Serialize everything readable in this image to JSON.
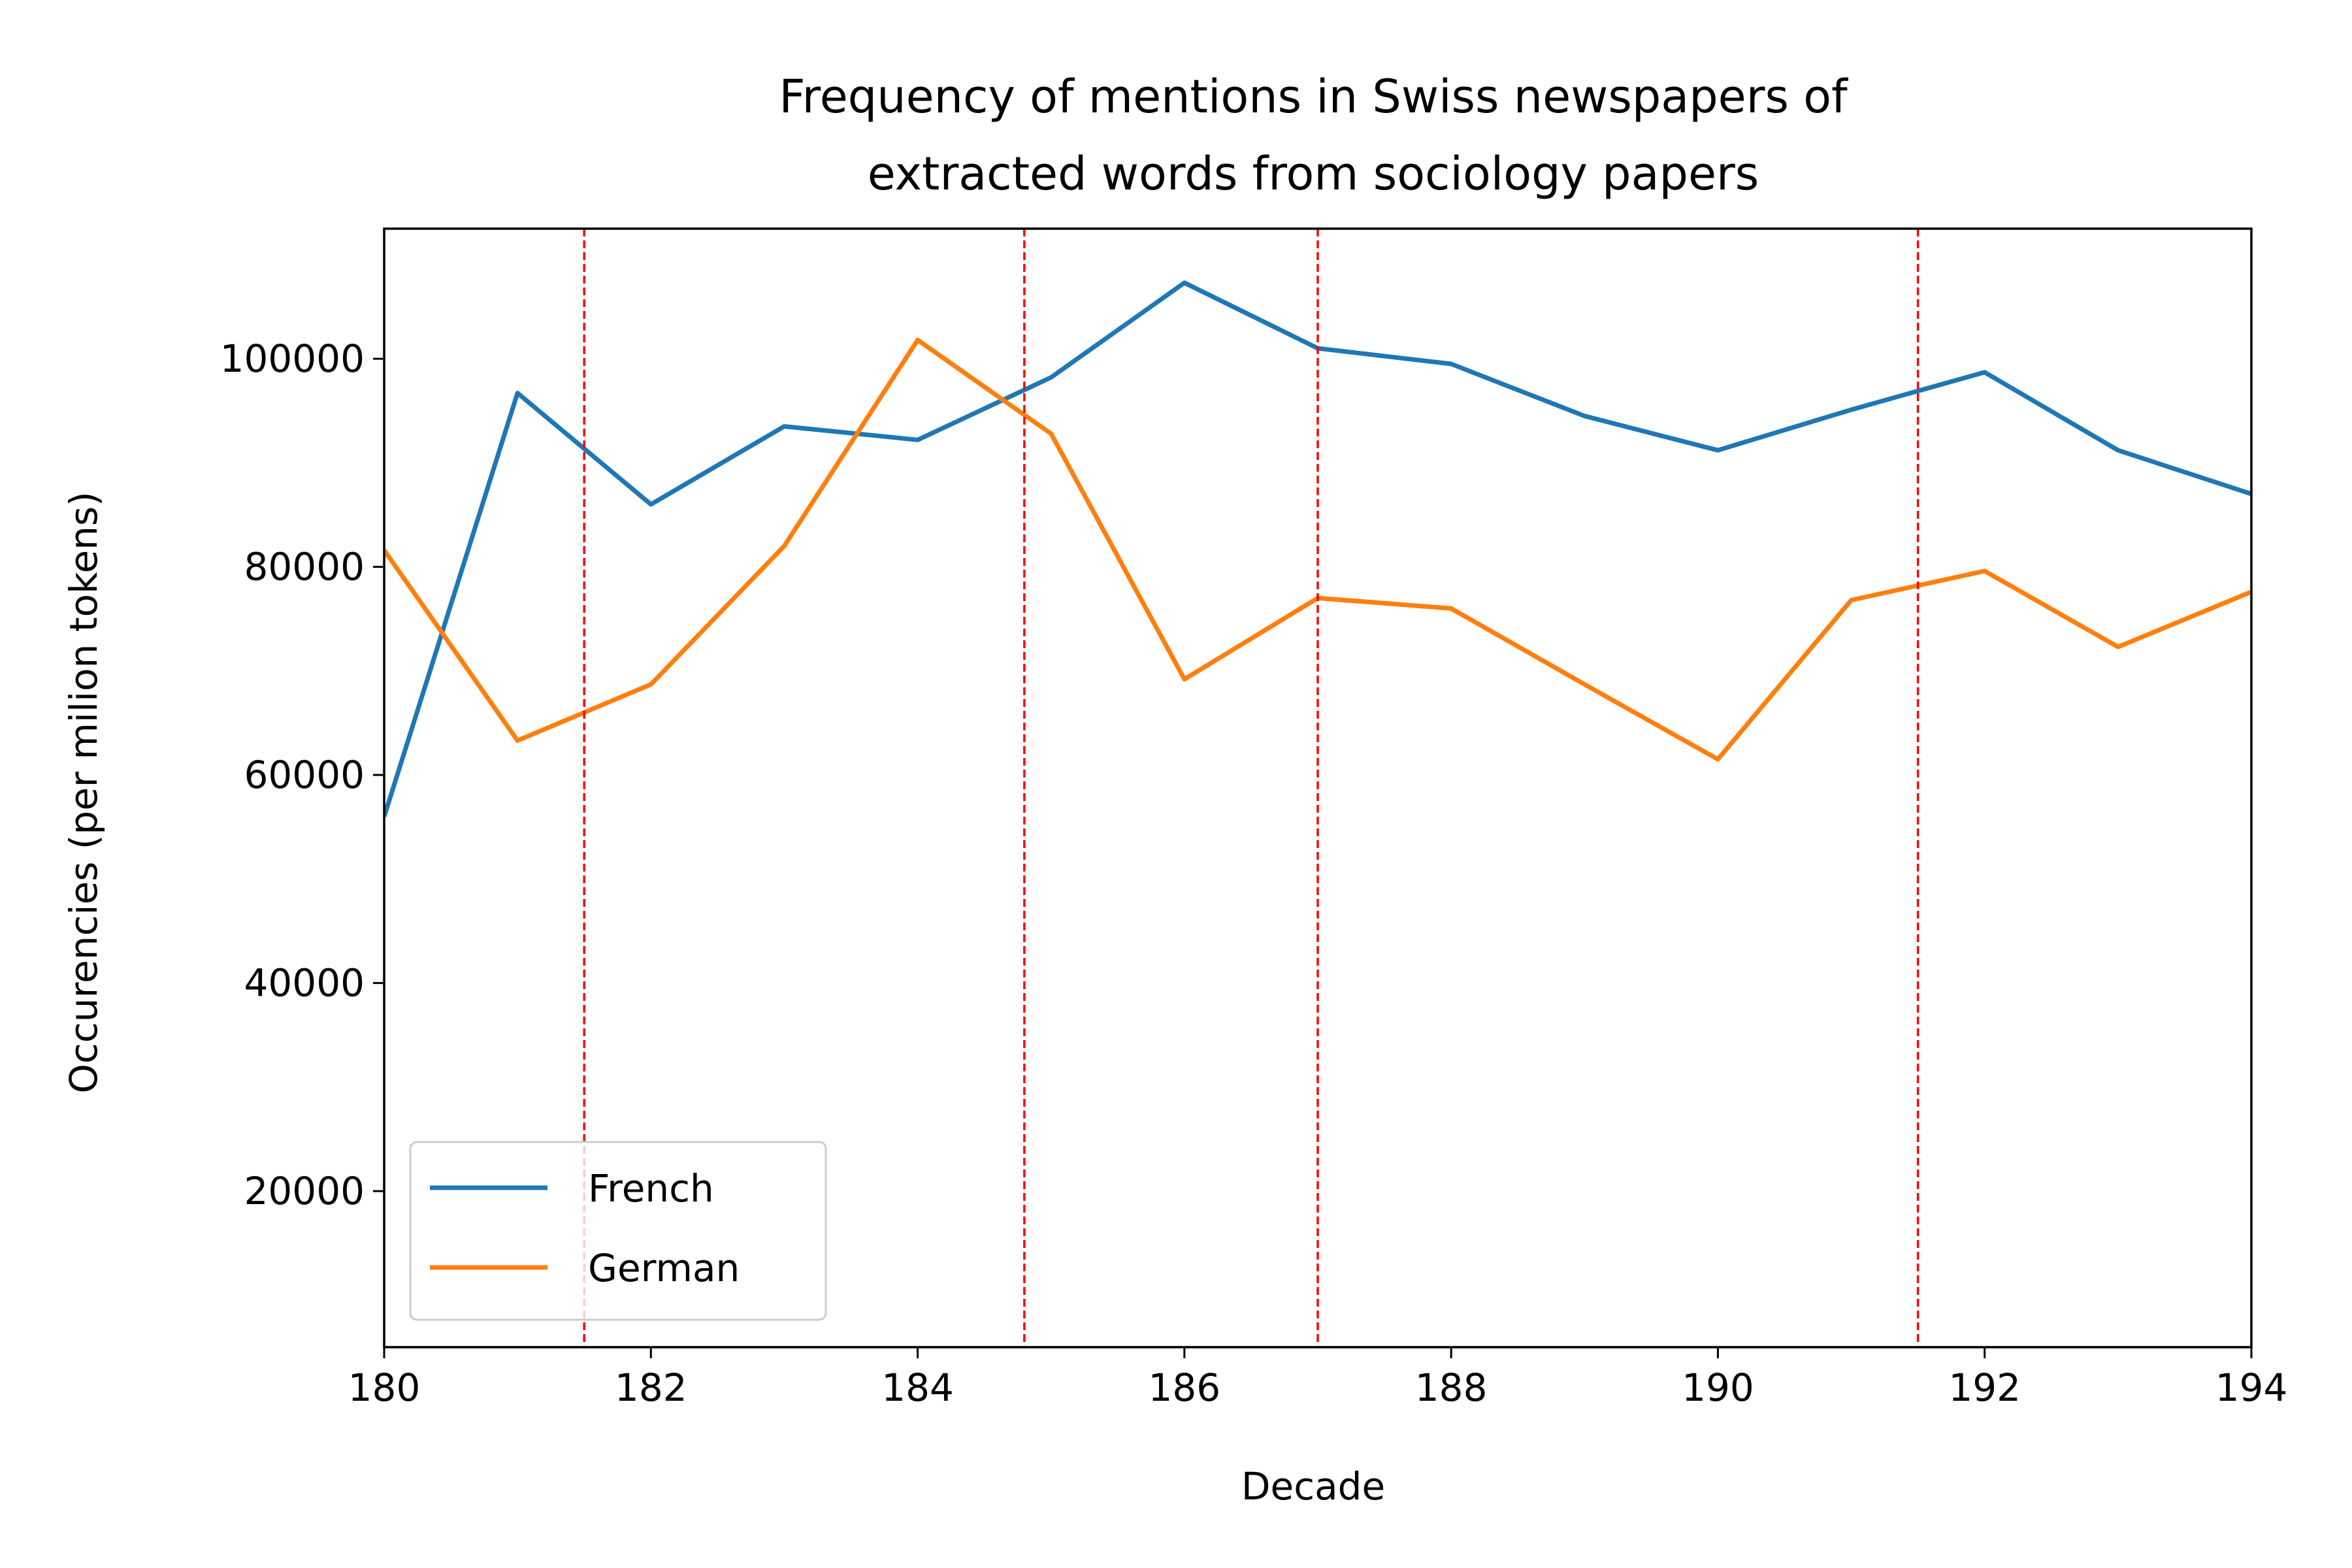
{
  "chart_data": {
    "type": "line",
    "title_lines": [
      "Frequency of mentions in Swiss newspapers of",
      "extracted words from sociology papers"
    ],
    "xlabel": "Decade",
    "ylabel": "Occurencies (per milion tokens)",
    "xlim": [
      180,
      194
    ],
    "ylim": [
      5000,
      112500
    ],
    "x_ticks": [
      180,
      182,
      184,
      186,
      188,
      190,
      192,
      194
    ],
    "y_ticks": [
      20000,
      40000,
      60000,
      80000,
      100000
    ],
    "x": [
      180,
      181,
      182,
      183,
      184,
      185,
      186,
      187,
      188,
      189,
      190,
      191,
      192,
      193,
      194
    ],
    "series": [
      {
        "name": "French",
        "color": "#1f77b4",
        "values": [
          56000,
          96700,
          86000,
          93500,
          92200,
          98200,
          107300,
          101000,
          99500,
          94500,
          91200,
          95100,
          98700,
          91200,
          87000
        ]
      },
      {
        "name": "German",
        "color": "#ff7f0e",
        "values": [
          81600,
          63300,
          68700,
          82000,
          101800,
          92800,
          69200,
          77000,
          76000,
          68700,
          61500,
          76800,
          79600,
          72300,
          77600
        ]
      }
    ],
    "vlines": {
      "x": [
        181.5,
        184.8,
        187.0,
        191.5
      ],
      "color": "#ff0000",
      "style": "dashed"
    },
    "legend": {
      "position": "lower-left"
    },
    "grid": false
  }
}
